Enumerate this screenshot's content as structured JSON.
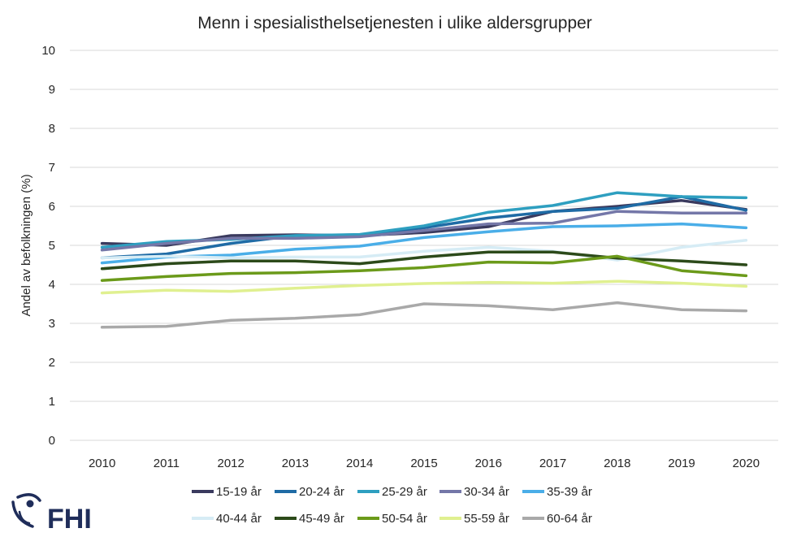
{
  "chart_data": {
    "type": "line",
    "title": "Menn i spesialisthelsetjenesten i ulike aldersgrupper",
    "xlabel": "",
    "ylabel": "Andel av befolkningen (%)",
    "ylim": [
      0,
      10
    ],
    "yticks": [
      "0",
      "1",
      "2",
      "3",
      "4",
      "5",
      "6",
      "7",
      "8",
      "9",
      "10"
    ],
    "categories": [
      "2010",
      "2011",
      "2012",
      "2013",
      "2014",
      "2015",
      "2016",
      "2017",
      "2018",
      "2019",
      "2020"
    ],
    "grid": "horizontal",
    "legend_position": "bottom",
    "series": [
      {
        "name": "15-19 år",
        "color": "#3a3a5e",
        "values": [
          5.05,
          5.0,
          5.25,
          5.27,
          5.25,
          5.33,
          5.48,
          5.87,
          6.0,
          6.15,
          5.92
        ]
      },
      {
        "name": "20-24 år",
        "color": "#1f6ba5",
        "values": [
          4.68,
          4.78,
          5.05,
          5.25,
          5.27,
          5.45,
          5.7,
          5.87,
          5.95,
          6.25,
          5.9
        ]
      },
      {
        "name": "25-29 år",
        "color": "#2e9fc0",
        "values": [
          4.95,
          5.1,
          5.15,
          5.25,
          5.28,
          5.5,
          5.85,
          6.02,
          6.35,
          6.25,
          6.22
        ]
      },
      {
        "name": "30-34 år",
        "color": "#7477a8",
        "values": [
          4.88,
          5.05,
          5.18,
          5.18,
          5.22,
          5.38,
          5.55,
          5.57,
          5.87,
          5.83,
          5.83
        ]
      },
      {
        "name": "35-39 år",
        "color": "#4aaee8",
        "values": [
          4.55,
          4.7,
          4.75,
          4.9,
          4.98,
          5.2,
          5.35,
          5.48,
          5.5,
          5.55,
          5.45
        ]
      },
      {
        "name": "40-44 år",
        "color": "#d6ecf5",
        "values": [
          4.68,
          4.72,
          4.68,
          4.7,
          4.7,
          4.85,
          4.95,
          4.85,
          4.62,
          4.95,
          5.13
        ]
      },
      {
        "name": "45-49 år",
        "color": "#2c4a1a",
        "values": [
          4.4,
          4.53,
          4.6,
          4.6,
          4.53,
          4.7,
          4.83,
          4.83,
          4.67,
          4.6,
          4.5
        ]
      },
      {
        "name": "50-54 år",
        "color": "#6b9a1a",
        "values": [
          4.1,
          4.2,
          4.28,
          4.3,
          4.35,
          4.43,
          4.57,
          4.55,
          4.72,
          4.35,
          4.22
        ]
      },
      {
        "name": "55-59 år",
        "color": "#e0f090",
        "values": [
          3.78,
          3.85,
          3.82,
          3.9,
          3.97,
          4.02,
          4.05,
          4.03,
          4.08,
          4.03,
          3.95
        ]
      },
      {
        "name": "60-64 år",
        "color": "#a9a9a9",
        "values": [
          2.9,
          2.92,
          3.08,
          3.13,
          3.22,
          3.5,
          3.45,
          3.35,
          3.53,
          3.35,
          3.32
        ]
      }
    ]
  },
  "logo": {
    "text": "FHI",
    "color": "#1f2d5a"
  }
}
